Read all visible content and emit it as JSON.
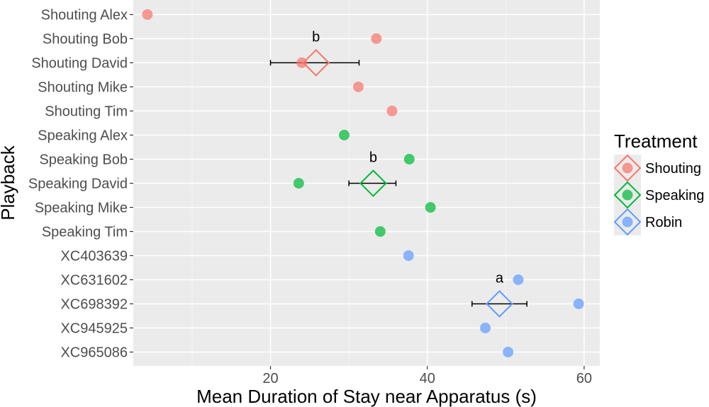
{
  "chart_data": {
    "type": "scatter",
    "title": "",
    "xlabel": "Mean Duration of Stay near Apparatus (s)",
    "ylabel": "Playback",
    "xlim": [
      2.5,
      62
    ],
    "x_ticks": [
      20,
      40,
      60
    ],
    "x_tick_labels": [
      "20",
      "40",
      "60"
    ],
    "grid": true,
    "categories": [
      "Shouting Alex",
      "Shouting Bob",
      "Shouting David",
      "Shouting Mike",
      "Shouting Tim",
      "Speaking Alex",
      "Speaking Bob",
      "Speaking David",
      "Speaking Mike",
      "Speaking Tim",
      "XC403639",
      "XC631602",
      "XC698392",
      "XC945925",
      "XC965086"
    ],
    "series": [
      {
        "name": "Shouting",
        "color": "#F8766D",
        "points": [
          {
            "playback": "Shouting Alex",
            "x": 4.3
          },
          {
            "playback": "Shouting Bob",
            "x": 33.5
          },
          {
            "playback": "Shouting David",
            "x": 24.0
          },
          {
            "playback": "Shouting Mike",
            "x": 31.2
          },
          {
            "playback": "Shouting Tim",
            "x": 35.5
          }
        ],
        "mean": {
          "playback": "Shouting David",
          "x": 25.8,
          "err_low": 20.0,
          "err_high": 31.3,
          "letter": "b"
        }
      },
      {
        "name": "Speaking",
        "color": "#00BA38",
        "points": [
          {
            "playback": "Speaking Alex",
            "x": 29.4
          },
          {
            "playback": "Speaking Bob",
            "x": 37.7
          },
          {
            "playback": "Speaking David",
            "x": 23.6
          },
          {
            "playback": "Speaking Mike",
            "x": 40.4
          },
          {
            "playback": "Speaking Tim",
            "x": 34.0
          }
        ],
        "mean": {
          "playback": "Speaking David",
          "x": 33.1,
          "err_low": 30.0,
          "err_high": 36.0,
          "letter": "b"
        }
      },
      {
        "name": "Robin",
        "color": "#619CFF",
        "points": [
          {
            "playback": "XC403639",
            "x": 37.6
          },
          {
            "playback": "XC631602",
            "x": 51.6
          },
          {
            "playback": "XC698392",
            "x": 59.3
          },
          {
            "playback": "XC945925",
            "x": 47.4
          },
          {
            "playback": "XC965086",
            "x": 50.3
          }
        ],
        "mean": {
          "playback": "XC698392",
          "x": 49.2,
          "err_low": 45.7,
          "err_high": 52.7,
          "letter": "a"
        }
      }
    ],
    "legend": {
      "title": "Treatment",
      "position": "right",
      "entries": [
        "Shouting",
        "Speaking",
        "Robin"
      ]
    }
  }
}
